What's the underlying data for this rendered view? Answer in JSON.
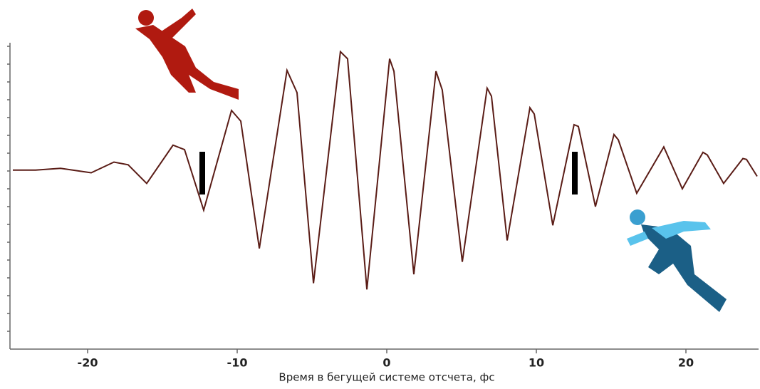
{
  "chart_data": {
    "type": "line",
    "x_label": "Время в бегущей системе отсчета, фс",
    "xlim": [
      -25,
      25
    ],
    "xticks": [
      -20,
      -10,
      0,
      10,
      20
    ],
    "ylim": [
      -2,
      1.44
    ],
    "yticks": [
      -1.8,
      -1.6,
      -1.4,
      -1.2,
      -1,
      -0.8,
      -0.6,
      -0.4,
      -0.2,
      0,
      0.2,
      0.4,
      0.6,
      0.8,
      1,
      1.2,
      1.4
    ],
    "series": [
      {
        "color": "#5a1c16",
        "x": [
          -25.0,
          -23.48,
          -21.81,
          -19.76,
          -18.24,
          -17.29,
          -16.05,
          -14.29,
          -13.52,
          -12.24,
          -10.38,
          -9.76,
          -8.52,
          -6.67,
          -6.0,
          -4.9,
          -3.1,
          -2.62,
          -1.33,
          0.19,
          0.48,
          1.81,
          3.29,
          3.71,
          5.05,
          6.71,
          7.0,
          8.05,
          9.57,
          9.86,
          11.1,
          12.52,
          12.81,
          13.95,
          15.19,
          15.48,
          16.71,
          18.52,
          19.76,
          21.14,
          21.43,
          22.52,
          23.81,
          24.05,
          24.76
        ],
        "values": [
          0.01,
          0.01,
          0.03,
          -0.02,
          0.1,
          0.07,
          -0.14,
          0.29,
          0.24,
          -0.44,
          0.68,
          0.56,
          -0.87,
          1.13,
          0.88,
          -1.26,
          1.34,
          1.26,
          -1.33,
          1.26,
          1.12,
          -1.16,
          1.12,
          0.91,
          -1.02,
          0.93,
          0.84,
          -0.78,
          0.71,
          0.64,
          -0.61,
          0.52,
          0.5,
          -0.4,
          0.41,
          0.35,
          -0.25,
          0.27,
          -0.2,
          0.21,
          0.18,
          -0.14,
          0.14,
          0.13,
          -0.06
        ]
      }
    ]
  }
}
